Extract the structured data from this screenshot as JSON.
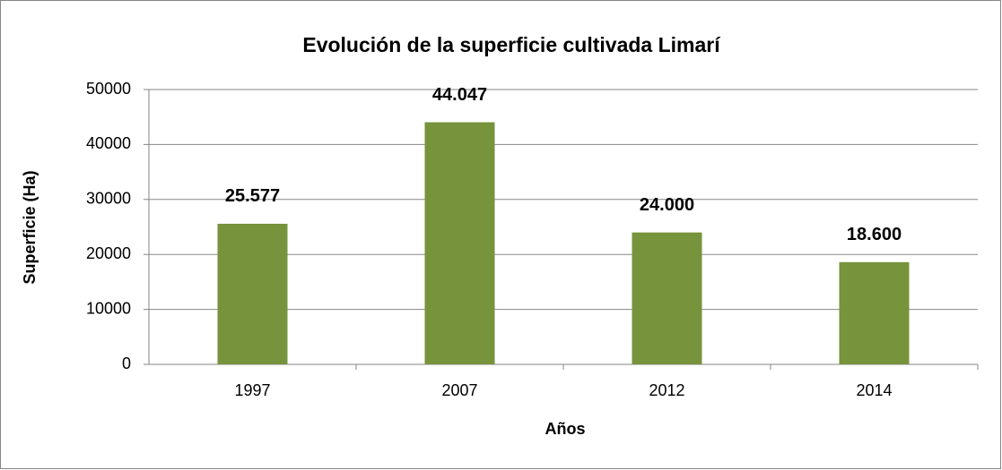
{
  "chart_data": {
    "type": "bar",
    "title": "Evolución de la superficie cultivada Limarí",
    "x_label": "Años",
    "y_label": "Superficie (Ha)",
    "categories": [
      "1997",
      "2007",
      "2012",
      "2014"
    ],
    "values": [
      25577,
      44047,
      24000,
      18600
    ],
    "value_labels": [
      "25.577",
      "44.047",
      "24.000",
      "18.600"
    ],
    "color": "#77933c",
    "ylim": [
      0,
      50000
    ],
    "yticks": [
      0,
      10000,
      20000,
      30000,
      40000,
      50000
    ],
    "grid": true
  }
}
